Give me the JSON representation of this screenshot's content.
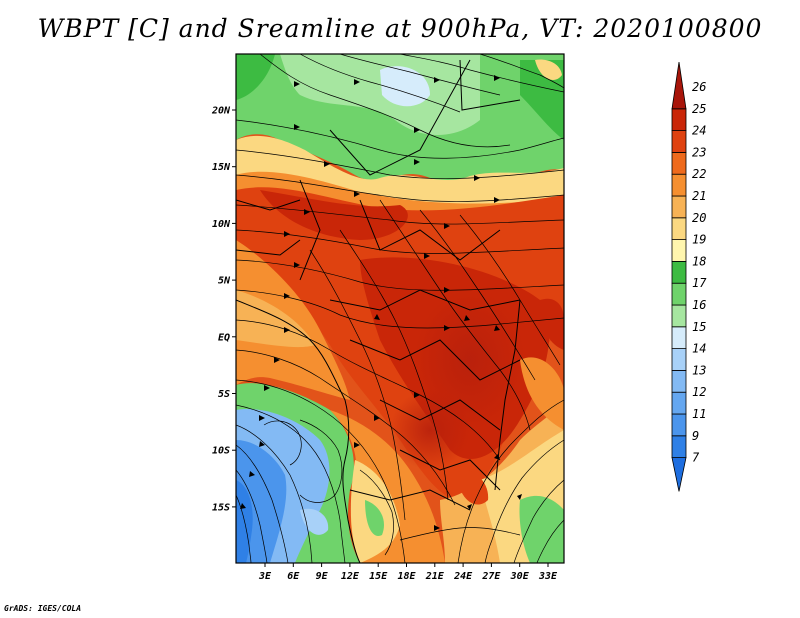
{
  "title": "WBPT [C] and Sreamline at 900hPa, VT: 2020100800",
  "footer": "GrADS: IGES/COLA",
  "map": {
    "variable": "WBPT",
    "units": "C",
    "level": "900hPa",
    "valid_time": "2020100800",
    "x_ticks": [
      "3E",
      "6E",
      "9E",
      "12E",
      "15E",
      "18E",
      "21E",
      "24E",
      "27E",
      "30E",
      "33E"
    ],
    "y_ticks": [
      "20N",
      "15N",
      "10N",
      "5N",
      "EQ",
      "5S",
      "10S",
      "15S"
    ]
  },
  "colorbar": {
    "levels": [
      "7",
      "9",
      "11",
      "12",
      "13",
      "14",
      "15",
      "16",
      "17",
      "18",
      "19",
      "20",
      "21",
      "22",
      "23",
      "24",
      "25",
      "26"
    ],
    "colors": [
      "#1e6ee0",
      "#2f80e6",
      "#4b95ec",
      "#65a7f0",
      "#83baf4",
      "#a8d1f8",
      "#d6ecfb",
      "#a6e6a0",
      "#6fd36b",
      "#3dbb42",
      "#fff6ae",
      "#fbd881",
      "#f7b255",
      "#f58f30",
      "#ee6a1c",
      "#df4210",
      "#c92608",
      "#a8150a"
    ]
  }
}
